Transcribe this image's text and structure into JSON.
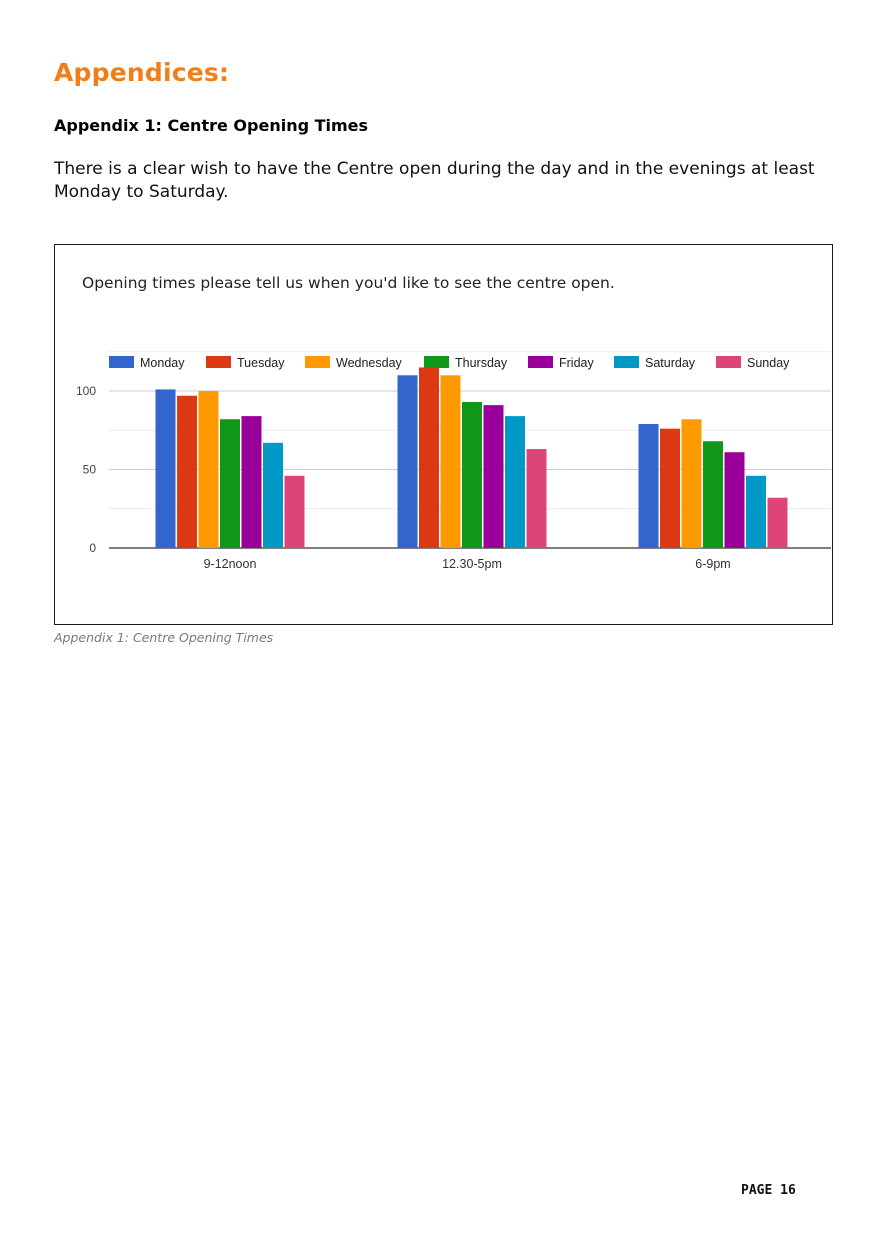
{
  "document": {
    "heading": "Appendices:",
    "subheading": "Appendix 1: Centre Opening Times",
    "intro": "There is a clear wish to have the Centre open during the day and in the evenings at least Monday to Saturday.",
    "caption": "Appendix 1: Centre Opening Times",
    "page_number": "PAGE 16"
  },
  "chart_data": {
    "type": "bar",
    "title": "Opening times please tell us when you'd like to see the centre open.",
    "xlabel": "",
    "ylabel": "",
    "categories": [
      "9-12noon",
      "12.30-5pm",
      "6-9pm"
    ],
    "series": [
      {
        "name": "Monday",
        "color": "#3366cc",
        "values": [
          101,
          110,
          79
        ]
      },
      {
        "name": "Tuesday",
        "color": "#dc3912",
        "values": [
          97,
          115,
          76
        ]
      },
      {
        "name": "Wednesday",
        "color": "#ff9900",
        "values": [
          100,
          110,
          82
        ]
      },
      {
        "name": "Thursday",
        "color": "#109618",
        "values": [
          82,
          93,
          68
        ]
      },
      {
        "name": "Friday",
        "color": "#990099",
        "values": [
          84,
          91,
          61
        ]
      },
      {
        "name": "Saturday",
        "color": "#0099c6",
        "values": [
          67,
          84,
          46
        ]
      },
      {
        "name": "Sunday",
        "color": "#dd4477",
        "values": [
          46,
          63,
          32
        ]
      }
    ],
    "ylim": [
      0,
      125
    ],
    "yticks": [
      0,
      50,
      100
    ],
    "grid": true,
    "legend_position": "top"
  }
}
